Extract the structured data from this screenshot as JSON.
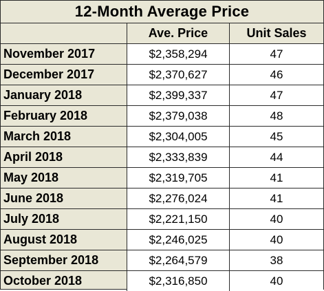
{
  "chart_data": {
    "type": "table",
    "title": "12-Month Average Price",
    "columns": [
      "",
      "Ave. Price",
      "Unit Sales"
    ],
    "rows": [
      {
        "month": "November 2017",
        "price": "$2,358,294",
        "units": "47"
      },
      {
        "month": "December 2017",
        "price": "$2,370,627",
        "units": "46"
      },
      {
        "month": "January 2018",
        "price": "$2,399,337",
        "units": "47"
      },
      {
        "month": "February 2018",
        "price": "$2,379,038",
        "units": "48"
      },
      {
        "month": "March 2018",
        "price": "$2,304,005",
        "units": "45"
      },
      {
        "month": "April 2018",
        "price": "$2,333,839",
        "units": "44"
      },
      {
        "month": "May 2018",
        "price": "$2,319,705",
        "units": "41"
      },
      {
        "month": "June 2018",
        "price": "$2,276,024",
        "units": "41"
      },
      {
        "month": "July 2018",
        "price": "$2,221,150",
        "units": "40"
      },
      {
        "month": "August 2018",
        "price": "$2,246,025",
        "units": "40"
      },
      {
        "month": "September 2018",
        "price": "$2,264,579",
        "units": "38"
      },
      {
        "month": "October 2018",
        "price": "$2,316,850",
        "units": "40"
      }
    ]
  },
  "colors": {
    "label_background": "#e9e7d6",
    "value_background": "#ffffff",
    "border": "#2a2a2a"
  }
}
